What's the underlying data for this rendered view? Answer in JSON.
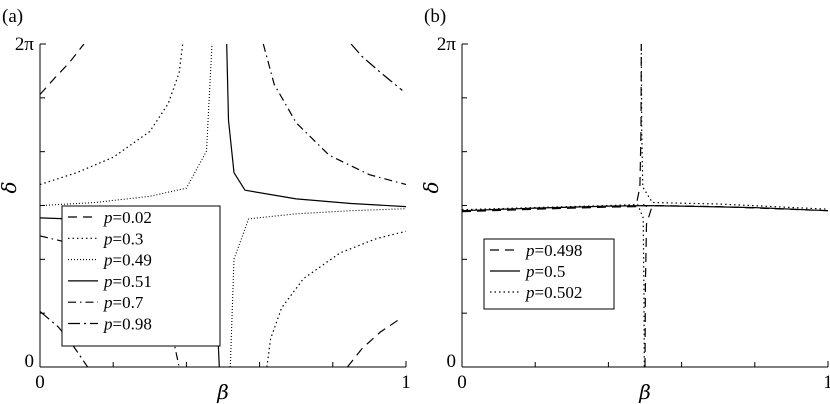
{
  "chart_data": [
    {
      "panel_label": "(a)",
      "type": "line",
      "xlabel": "β",
      "ylabel": "δ",
      "xlim": [
        0,
        1
      ],
      "ylim": [
        0,
        6.283
      ],
      "x_ticks": [
        {
          "value": 0,
          "label": "0"
        },
        {
          "value": 1,
          "label": "1"
        }
      ],
      "y_ticks": [
        {
          "value": 0,
          "label": "0"
        },
        {
          "value": 6.283,
          "label": "2π"
        }
      ],
      "grid": false,
      "legend_position": "lower-left",
      "series": [
        {
          "name": "0.02",
          "style": "dashed",
          "segments": [
            [
              [
                0.0,
                5.3
              ],
              [
                0.04,
                5.62
              ],
              [
                0.08,
                5.92
              ],
              [
                0.12,
                6.283
              ]
            ],
            [
              [
                0.84,
                0.0
              ],
              [
                0.88,
                0.36
              ],
              [
                0.93,
                0.68
              ],
              [
                0.98,
                0.92
              ]
            ]
          ]
        },
        {
          "name": "0.3",
          "style": "dotted",
          "segments": [
            [
              [
                0.0,
                3.55
              ],
              [
                0.1,
                3.78
              ],
              [
                0.2,
                4.08
              ],
              [
                0.3,
                4.58
              ],
              [
                0.35,
                5.12
              ],
              [
                0.38,
                5.72
              ],
              [
                0.39,
                6.283
              ]
            ],
            [
              [
                0.62,
                0.0
              ],
              [
                0.63,
                0.55
              ],
              [
                0.66,
                1.15
              ],
              [
                0.72,
                1.72
              ],
              [
                0.82,
                2.22
              ],
              [
                0.92,
                2.5
              ],
              [
                1.0,
                2.64
              ]
            ]
          ]
        },
        {
          "name": "0.49",
          "style": "fine-dotted",
          "segments": [
            [
              [
                0.0,
                3.14
              ],
              [
                0.15,
                3.2
              ],
              [
                0.3,
                3.32
              ],
              [
                0.4,
                3.48
              ],
              [
                0.455,
                4.2
              ],
              [
                0.47,
                6.283
              ]
            ],
            [
              [
                0.52,
                0.0
              ],
              [
                0.53,
                2.1
              ],
              [
                0.57,
                2.88
              ],
              [
                0.7,
                2.98
              ],
              [
                0.85,
                3.04
              ],
              [
                1.0,
                3.08
              ]
            ]
          ]
        },
        {
          "name": "0.51",
          "style": "solid",
          "segments": [
            [
              [
                0.51,
                6.283
              ],
              [
                0.515,
                4.8
              ],
              [
                0.53,
                3.78
              ],
              [
                0.56,
                3.44
              ],
              [
                0.7,
                3.27
              ],
              [
                0.85,
                3.18
              ],
              [
                1.0,
                3.12
              ]
            ],
            [
              [
                0.0,
                2.9
              ],
              [
                0.2,
                2.85
              ],
              [
                0.4,
                2.74
              ],
              [
                0.46,
                2.5
              ],
              [
                0.48,
                1.6
              ],
              [
                0.49,
                0.0
              ]
            ]
          ]
        },
        {
          "name": "0.7",
          "style": "dash-dot",
          "segments": [
            [
              [
                0.61,
                6.283
              ],
              [
                0.64,
                5.5
              ],
              [
                0.7,
                4.75
              ],
              [
                0.79,
                4.12
              ],
              [
                0.9,
                3.74
              ],
              [
                1.0,
                3.55
              ]
            ],
            [
              [
                0.0,
                2.55
              ],
              [
                0.1,
                2.38
              ],
              [
                0.2,
                2.06
              ],
              [
                0.3,
                1.5
              ],
              [
                0.36,
                0.68
              ],
              [
                0.38,
                0.0
              ]
            ]
          ]
        },
        {
          "name": "0.98",
          "style": "dash-dot-long",
          "segments": [
            [
              [
                0.85,
                6.283
              ],
              [
                0.88,
                6.04
              ],
              [
                0.93,
                5.73
              ],
              [
                0.99,
                5.38
              ]
            ],
            [
              [
                0.0,
                1.08
              ],
              [
                0.05,
                0.78
              ],
              [
                0.09,
                0.42
              ],
              [
                0.13,
                0.0
              ]
            ]
          ]
        }
      ]
    },
    {
      "panel_label": "(b)",
      "type": "line",
      "xlabel": "β",
      "ylabel": "δ",
      "xlim": [
        0,
        1
      ],
      "ylim": [
        0,
        6.283
      ],
      "x_ticks": [
        {
          "value": 0,
          "label": "0"
        },
        {
          "value": 1,
          "label": "1"
        }
      ],
      "y_ticks": [
        {
          "value": 0,
          "label": "0"
        },
        {
          "value": 6.283,
          "label": "2π"
        }
      ],
      "grid": false,
      "legend_position": "lower-left",
      "series": [
        {
          "name": "0.498",
          "style": "dashed",
          "segments": [
            [
              [
                0.0,
                3.02
              ],
              [
                0.2,
                3.07
              ],
              [
                0.4,
                3.11
              ],
              [
                0.475,
                3.12
              ],
              [
                0.486,
                3.5
              ],
              [
                0.489,
                4.6
              ],
              [
                0.49,
                6.283
              ]
            ],
            [
              [
                0.5,
                0.0
              ],
              [
                0.501,
                1.6
              ],
              [
                0.504,
                2.78
              ],
              [
                0.52,
                3.14
              ],
              [
                0.7,
                3.12
              ],
              [
                1.0,
                3.04
              ]
            ]
          ]
        },
        {
          "name": "0.5",
          "style": "solid",
          "segments": [
            [
              [
                0.0,
                3.04
              ],
              [
                0.2,
                3.09
              ],
              [
                0.4,
                3.13
              ],
              [
                0.5,
                3.14
              ],
              [
                0.6,
                3.13
              ],
              [
                0.8,
                3.1
              ],
              [
                1.0,
                3.04
              ]
            ],
            [
              [
                0.495,
                3.16
              ],
              [
                0.505,
                3.12
              ]
            ]
          ]
        },
        {
          "name": "0.502",
          "style": "dotted",
          "segments": [
            [
              [
                0.0,
                3.06
              ],
              [
                0.2,
                3.1
              ],
              [
                0.4,
                3.14
              ],
              [
                0.48,
                3.16
              ],
              [
                0.495,
                2.9
              ],
              [
                0.497,
                1.6
              ],
              [
                0.498,
                0.0
              ]
            ],
            [
              [
                0.49,
                6.283
              ],
              [
                0.491,
                4.6
              ],
              [
                0.494,
                3.5
              ],
              [
                0.52,
                3.2
              ],
              [
                0.7,
                3.17
              ],
              [
                1.0,
                3.07
              ]
            ]
          ]
        }
      ]
    }
  ]
}
